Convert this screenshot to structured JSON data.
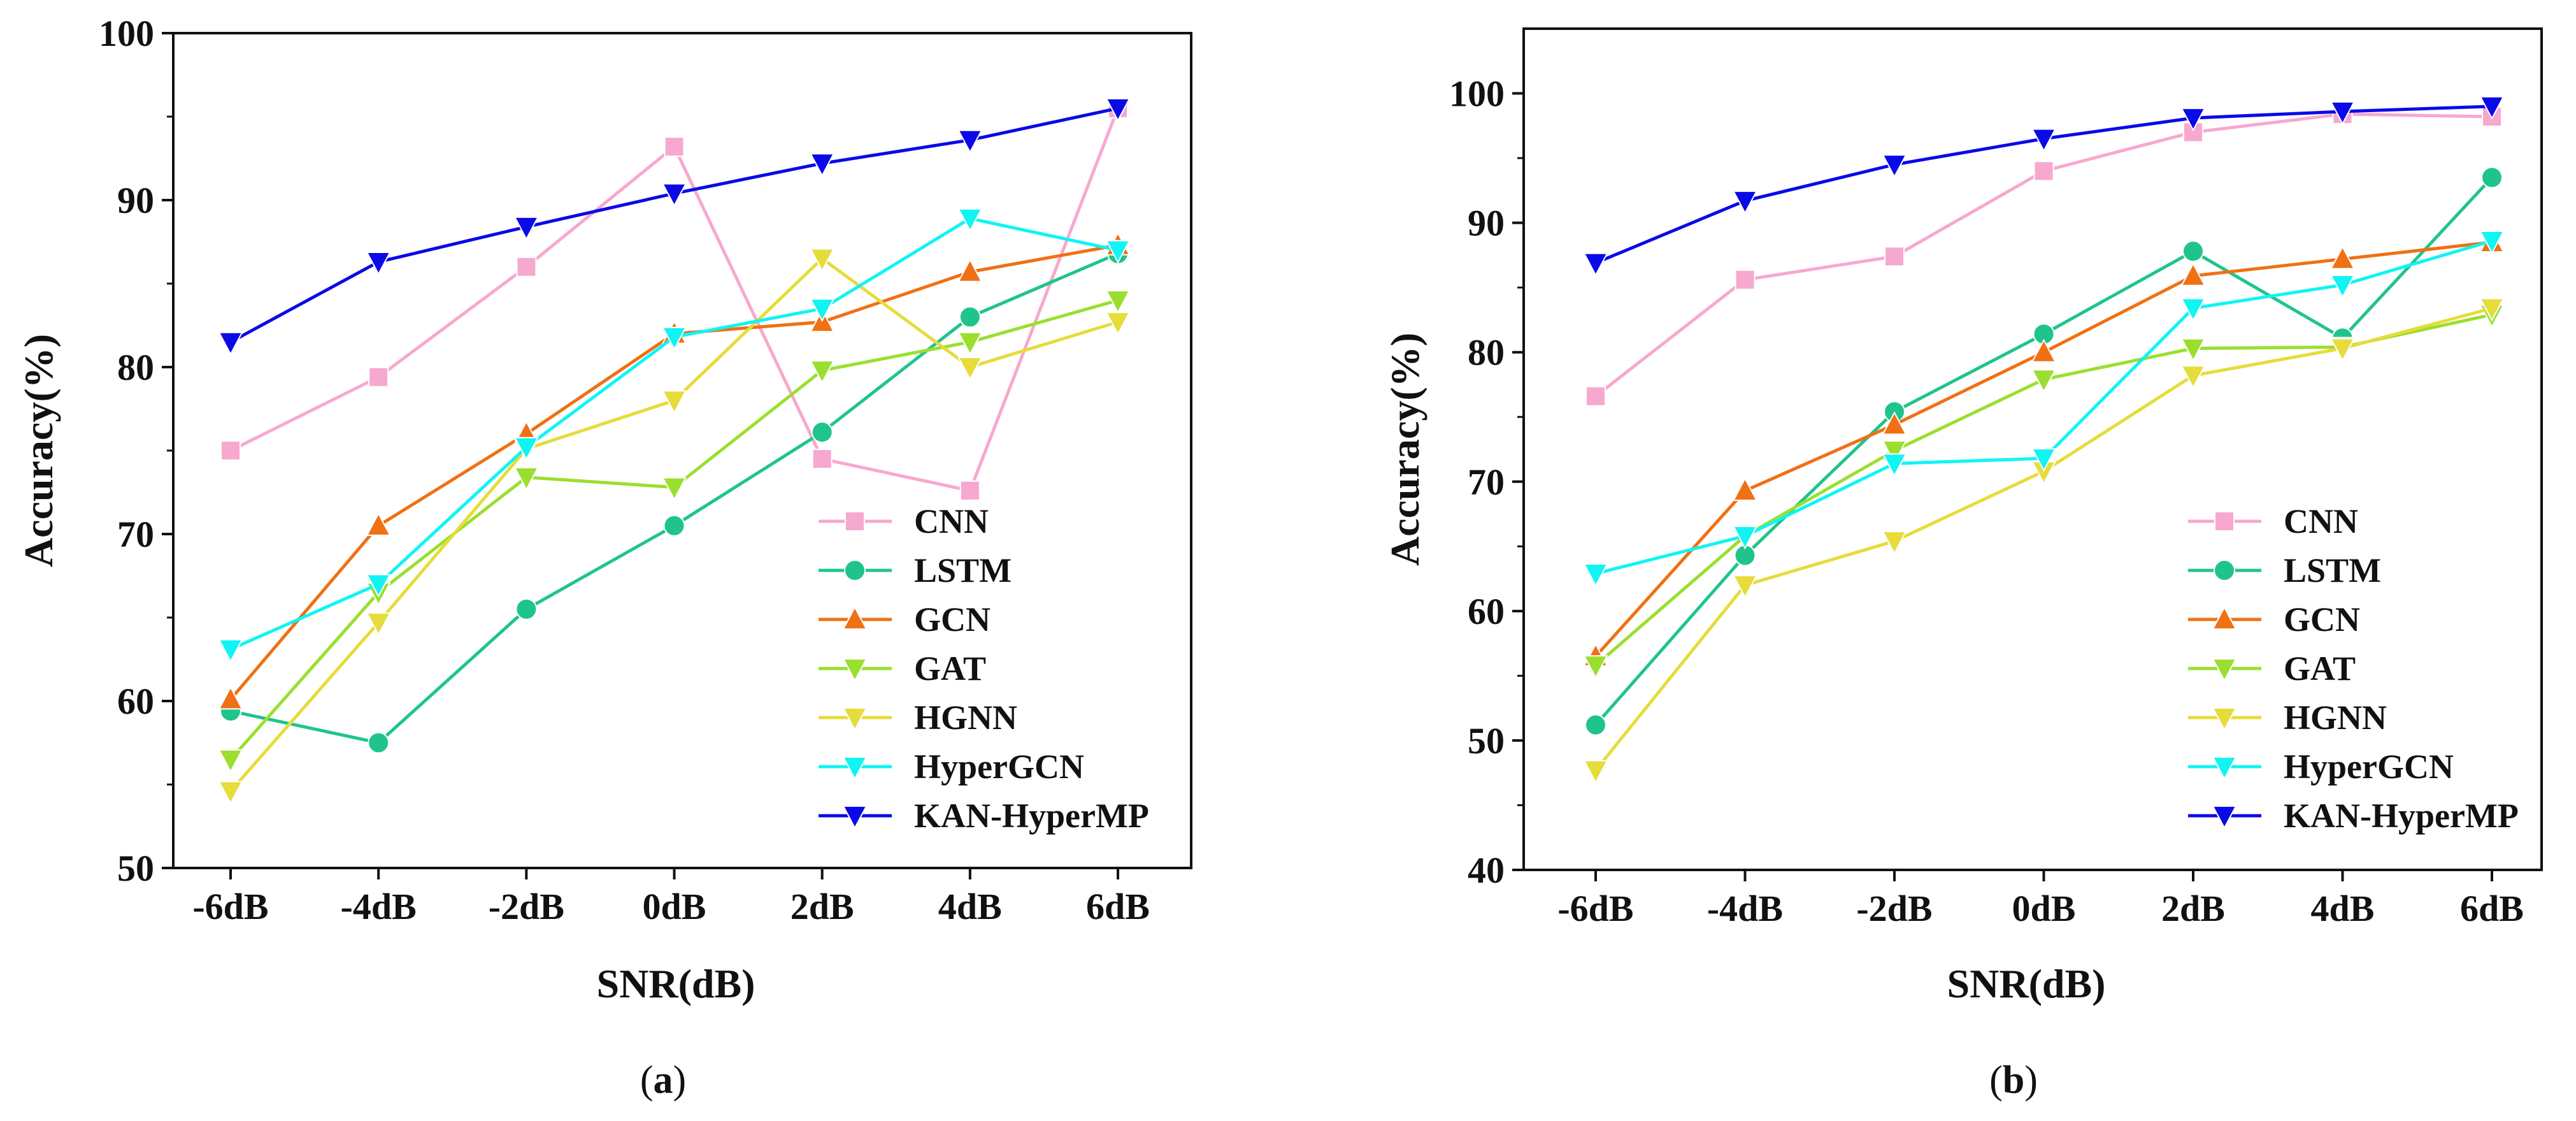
{
  "chart_data": [
    {
      "type": "line",
      "panel": "a",
      "caption_letter": "a",
      "xlabel": "SNR(dB)",
      "ylabel": "Accuracy(%)",
      "categories": [
        "-6dB",
        "-4dB",
        "-2dB",
        "0dB",
        "2dB",
        "4dB",
        "6dB"
      ],
      "ylim": [
        50,
        100
      ],
      "yticks": [
        50,
        60,
        70,
        80,
        90,
        100
      ],
      "legend_position": "bottom-right",
      "series": [
        {
          "name": "CNN",
          "color": "#f7a8cf",
          "marker": "square",
          "values": [
            75.0,
            79.4,
            86.0,
            93.2,
            74.5,
            72.6,
            95.5
          ]
        },
        {
          "name": "LSTM",
          "color": "#1fc48c",
          "marker": "circle",
          "values": [
            59.4,
            57.5,
            65.5,
            70.5,
            76.1,
            83.0,
            86.8
          ]
        },
        {
          "name": "GCN",
          "color": "#f07014",
          "marker": "triangle-up",
          "values": [
            60.1,
            70.5,
            76.0,
            82.0,
            82.7,
            85.7,
            87.3
          ]
        },
        {
          "name": "GAT",
          "color": "#9adf2e",
          "marker": "triangle-down",
          "values": [
            56.5,
            66.5,
            73.4,
            72.8,
            79.8,
            81.5,
            84.0
          ]
        },
        {
          "name": "HGNN",
          "color": "#e6dc3a",
          "marker": "triangle-down",
          "values": [
            54.6,
            64.7,
            75.1,
            78.0,
            86.5,
            80.0,
            82.7
          ]
        },
        {
          "name": "HyperGCN",
          "color": "#10f4f4",
          "marker": "triangle-down",
          "values": [
            63.1,
            67.0,
            75.2,
            81.8,
            83.5,
            88.9,
            87.0
          ]
        },
        {
          "name": "KAN-HyperMP",
          "color": "#0a0ae8",
          "marker": "triangle-down",
          "values": [
            81.5,
            86.3,
            88.4,
            90.4,
            92.2,
            93.6,
            95.5
          ]
        }
      ]
    },
    {
      "type": "line",
      "panel": "b",
      "caption_letter": "b",
      "xlabel": "SNR(dB)",
      "ylabel": "Accuracy(%)",
      "categories": [
        "-6dB",
        "-4dB",
        "-2dB",
        "0dB",
        "2dB",
        "4dB",
        "6dB"
      ],
      "ylim": [
        40,
        105
      ],
      "yticks": [
        40,
        50,
        60,
        70,
        80,
        90,
        100
      ],
      "legend_position": "bottom-right",
      "series": [
        {
          "name": "CNN",
          "color": "#f7a8cf",
          "marker": "square",
          "values": [
            76.6,
            85.6,
            87.4,
            94.0,
            97.0,
            98.4,
            98.2
          ]
        },
        {
          "name": "LSTM",
          "color": "#1fc48c",
          "marker": "circle",
          "values": [
            51.2,
            64.3,
            75.4,
            81.4,
            87.8,
            81.1,
            93.5
          ]
        },
        {
          "name": "GCN",
          "color": "#f07014",
          "marker": "triangle-up",
          "values": [
            56.5,
            69.3,
            74.4,
            80.0,
            85.9,
            87.2,
            88.5
          ]
        },
        {
          "name": "GAT",
          "color": "#9adf2e",
          "marker": "triangle-down",
          "values": [
            55.8,
            65.8,
            72.4,
            77.9,
            80.3,
            80.4,
            82.9
          ]
        },
        {
          "name": "HGNN",
          "color": "#e6dc3a",
          "marker": "triangle-down",
          "values": [
            47.7,
            62.0,
            65.4,
            70.8,
            78.2,
            80.3,
            83.4
          ]
        },
        {
          "name": "HyperGCN",
          "color": "#10f4f4",
          "marker": "triangle-down",
          "values": [
            62.9,
            65.8,
            71.4,
            71.8,
            83.4,
            85.2,
            88.6
          ]
        },
        {
          "name": "KAN-HyperMP",
          "color": "#0a0ae8",
          "marker": "triangle-down",
          "values": [
            86.9,
            91.7,
            94.5,
            96.5,
            98.1,
            98.6,
            99.0
          ]
        }
      ]
    }
  ]
}
